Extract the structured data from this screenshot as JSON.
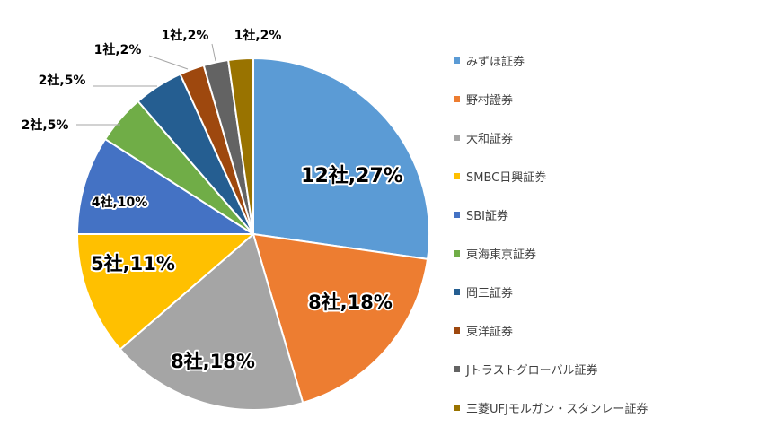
{
  "chart_data": {
    "type": "pie",
    "legend_position": "right",
    "slices": [
      {
        "name": "みずほ証券",
        "count": 12,
        "value": 27,
        "label": "12社,27%",
        "color": "#5b9bd5"
      },
      {
        "name": "野村證券",
        "count": 8,
        "value": 18,
        "label": "8社,18%",
        "color": "#ed7d31"
      },
      {
        "name": "大和証券",
        "count": 8,
        "value": 18,
        "label": "8社,18%",
        "color": "#a5a5a5"
      },
      {
        "name": "SMBC日興証券",
        "count": 5,
        "value": 11,
        "label": "5社,11%",
        "color": "#ffc000"
      },
      {
        "name": "SBI証券",
        "count": 4,
        "value": 10,
        "label": "4社,10%",
        "color": "#4472c4"
      },
      {
        "name": "東海東京証券",
        "count": 2,
        "value": 5,
        "label": "2社,5%",
        "color": "#70ad47"
      },
      {
        "name": "岡三証券",
        "count": 2,
        "value": 5,
        "label": "2社,5%",
        "color": "#255e91"
      },
      {
        "name": "東洋証券",
        "count": 1,
        "value": 2,
        "label": "1社,2%",
        "color": "#9e480e"
      },
      {
        "name": "Jトラストグローバル証券",
        "count": 1,
        "value": 2,
        "label": "1社,2%",
        "color": "#636363"
      },
      {
        "name": "三菱UFJモルガン・スタンレー証券",
        "count": 1,
        "value": 2,
        "label": "1社,2%",
        "color": "#997300"
      }
    ]
  }
}
